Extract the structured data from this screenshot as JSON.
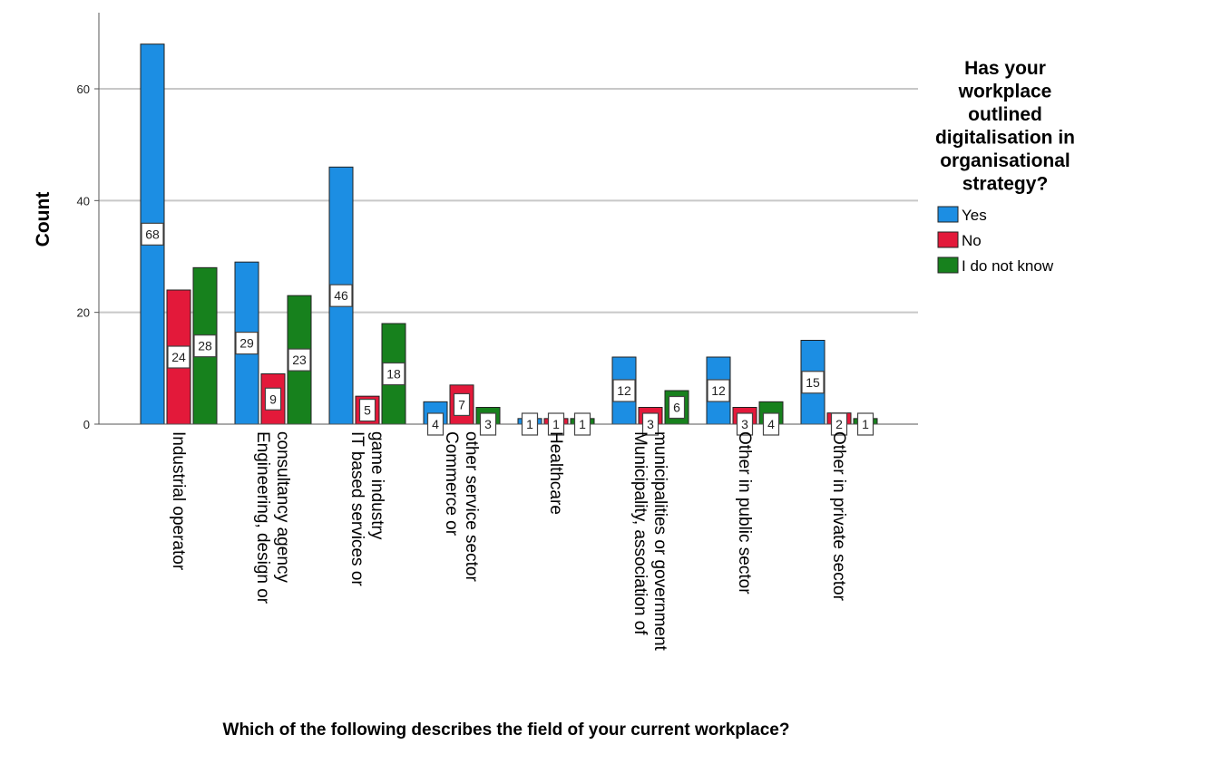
{
  "chart_data": {
    "type": "bar",
    "title": "",
    "xlabel": "Which of the following describes the field of your current workplace?",
    "ylabel": "Count",
    "ylim": [
      0,
      75
    ],
    "yticks": [
      0,
      20,
      40,
      60
    ],
    "grid": true,
    "legend_position": "right",
    "legend_title_lines": [
      "Has your",
      "workplace",
      "outlined",
      "digitalisation in",
      "organisational",
      "strategy?"
    ],
    "categories": [
      [
        "Industrial operator"
      ],
      [
        "Engineering, design or",
        "consultancy agency"
      ],
      [
        "IT based services or",
        "game industry"
      ],
      [
        "Commerce or",
        "other service sector"
      ],
      [
        "Healthcare"
      ],
      [
        "Municipality, association of",
        "municipalities or government"
      ],
      [
        "Other in public sector"
      ],
      [
        "Other in private sector"
      ]
    ],
    "series": [
      {
        "name": "Yes",
        "color": "#1c8ee3",
        "values": [
          68,
          29,
          46,
          4,
          1,
          12,
          12,
          15
        ]
      },
      {
        "name": "No",
        "color": "#e3193a",
        "values": [
          24,
          9,
          5,
          7,
          1,
          3,
          3,
          2
        ]
      },
      {
        "name": "I do not know",
        "color": "#17811d",
        "values": [
          28,
          23,
          18,
          3,
          1,
          6,
          4,
          1
        ]
      }
    ]
  }
}
